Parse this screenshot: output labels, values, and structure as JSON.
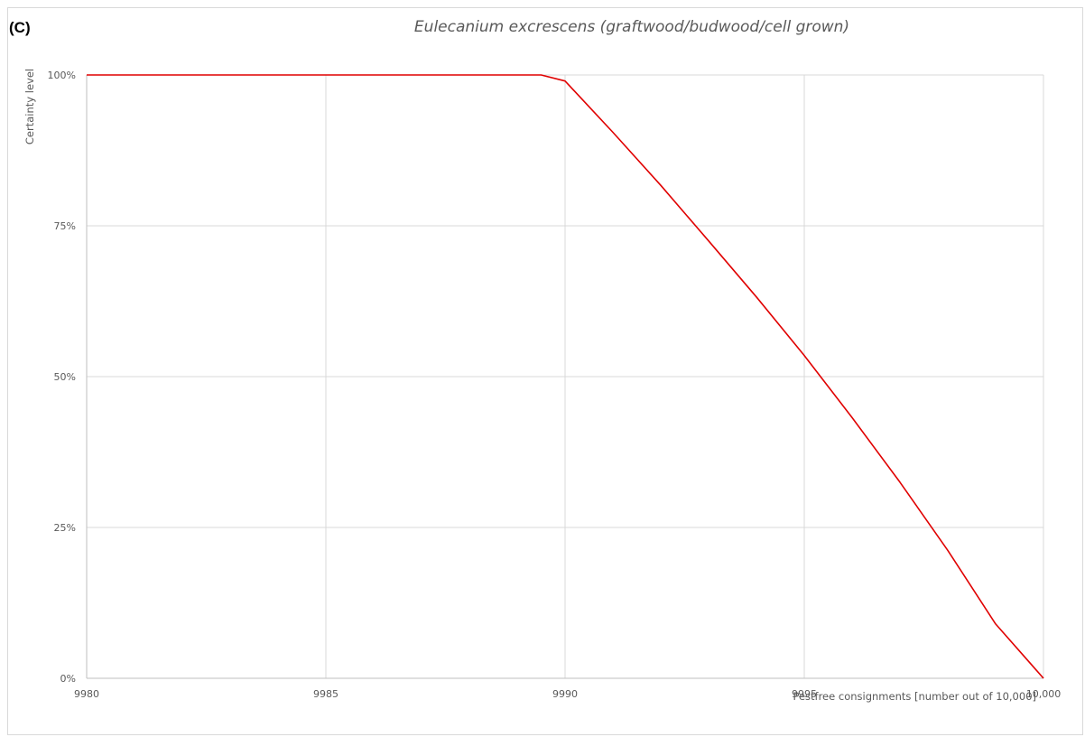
{
  "panel_label": "(C)",
  "chart_data": {
    "type": "line",
    "title": "Eulecanium excrescens (graftwood/budwood/cell grown)",
    "xlabel": "Pestfree consignments [number out of 10,000]",
    "ylabel": "Certainty level",
    "xlim": [
      9980,
      10000
    ],
    "ylim": [
      0,
      1
    ],
    "x_ticks": [
      9980,
      9985,
      9990,
      9995,
      10000
    ],
    "x_tick_labels": [
      "9980",
      "9985",
      "9990",
      "9995",
      "10,000"
    ],
    "y_ticks": [
      0,
      0.25,
      0.5,
      0.75,
      1
    ],
    "y_tick_labels": [
      "0%",
      "25%",
      "50%",
      "75%",
      "100%"
    ],
    "grid": true,
    "colors": {
      "series": "#e00000",
      "grid": "#d9d9d9",
      "axis": "#bfbfbf"
    },
    "series": [
      {
        "name": "",
        "x": [
          9980,
          9989.5,
          9990,
          9991,
          9992,
          9993,
          9994,
          9995,
          9996,
          9997,
          9998,
          9999,
          10000
        ],
        "y": [
          1.0,
          1.0,
          0.99,
          0.905,
          0.817,
          0.725,
          0.632,
          0.535,
          0.432,
          0.325,
          0.212,
          0.09,
          0.0
        ]
      }
    ]
  }
}
